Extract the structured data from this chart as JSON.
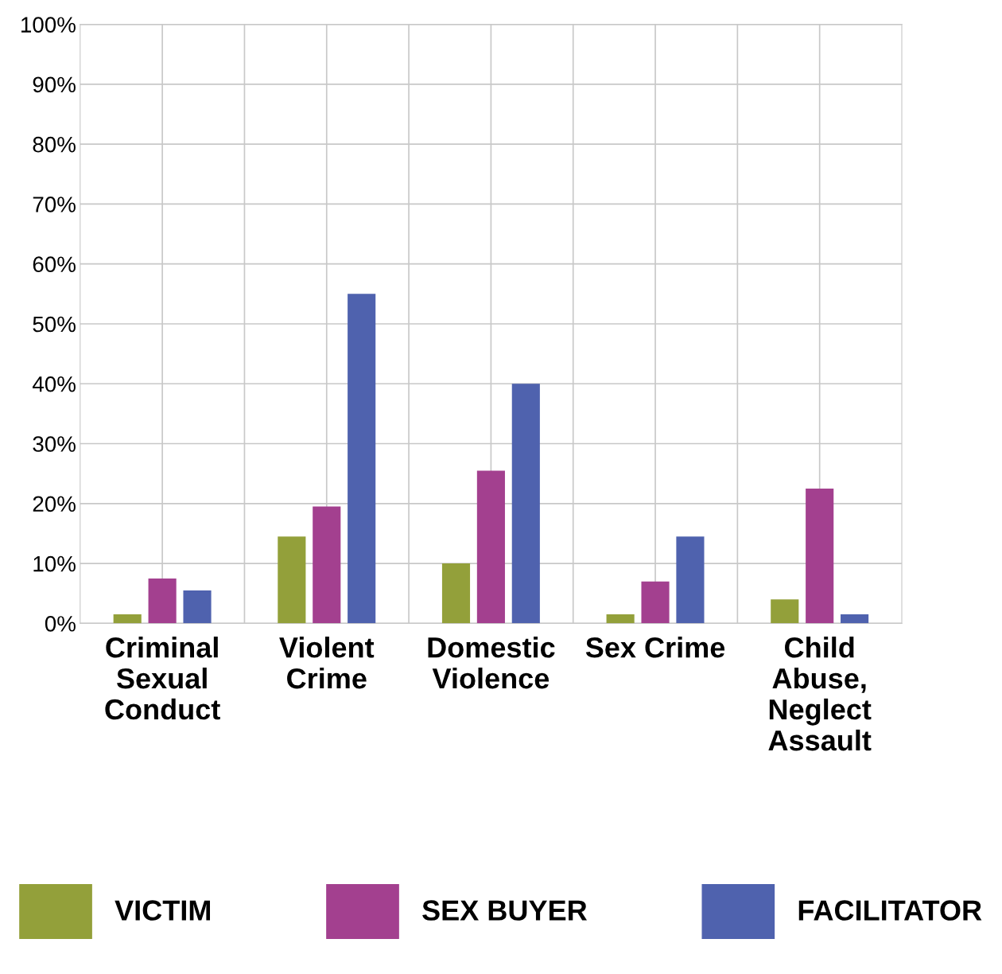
{
  "chart_data": {
    "type": "bar",
    "categories": [
      "Criminal\nSexual\nConduct",
      "Violent\nCrime",
      "Domestic\nViolence",
      "Sex Crime",
      "Child\nAbuse,\nNeglect\nAssault"
    ],
    "series": [
      {
        "name": "VICTIM",
        "color": "#93a03a",
        "values": [
          1.5,
          14.5,
          10,
          1.5,
          4
        ]
      },
      {
        "name": "SEX BUYER",
        "color": "#a3408f",
        "values": [
          7.5,
          19.5,
          25.5,
          7,
          22.5
        ]
      },
      {
        "name": "FACILITATOR",
        "color": "#4f62ae",
        "values": [
          5.5,
          55,
          40,
          14.5,
          1.5
        ]
      }
    ],
    "ylim": [
      0,
      100
    ],
    "yticks": [
      {
        "value": 0,
        "label": "0%"
      },
      {
        "value": 10,
        "label": "10%"
      },
      {
        "value": 20,
        "label": "20%"
      },
      {
        "value": 30,
        "label": "30%"
      },
      {
        "value": 40,
        "label": "40%"
      },
      {
        "value": 50,
        "label": "50%"
      },
      {
        "value": 60,
        "label": "60%"
      },
      {
        "value": 70,
        "label": "70%"
      },
      {
        "value": 80,
        "label": "80%"
      },
      {
        "value": 90,
        "label": "90%"
      },
      {
        "value": 100,
        "label": "100%"
      }
    ],
    "grid": true,
    "legend": "bottom"
  }
}
